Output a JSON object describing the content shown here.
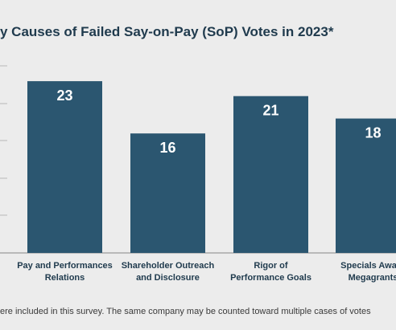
{
  "chart_data": {
    "type": "bar",
    "title": "y Causes of Failed Say-on-Pay (SoP) Votes in 2023*",
    "categories": [
      [
        "Pay and Performances",
        "Relations"
      ],
      [
        "Shareholder Outreach",
        "and Disclosure"
      ],
      [
        "Rigor of",
        "Performance Goals"
      ],
      [
        "Specials Award",
        "Megagrants"
      ]
    ],
    "values": [
      23,
      16,
      21,
      18
    ],
    "value_labels": [
      "23",
      "16",
      "21",
      "18"
    ],
    "ylim": [
      0,
      25
    ],
    "grid": false,
    "bar_color": "#2b5670",
    "label_color": "#ffffff",
    "footnote": "ere included in this survey. The same company may be counted toward multiple cases of votes"
  }
}
